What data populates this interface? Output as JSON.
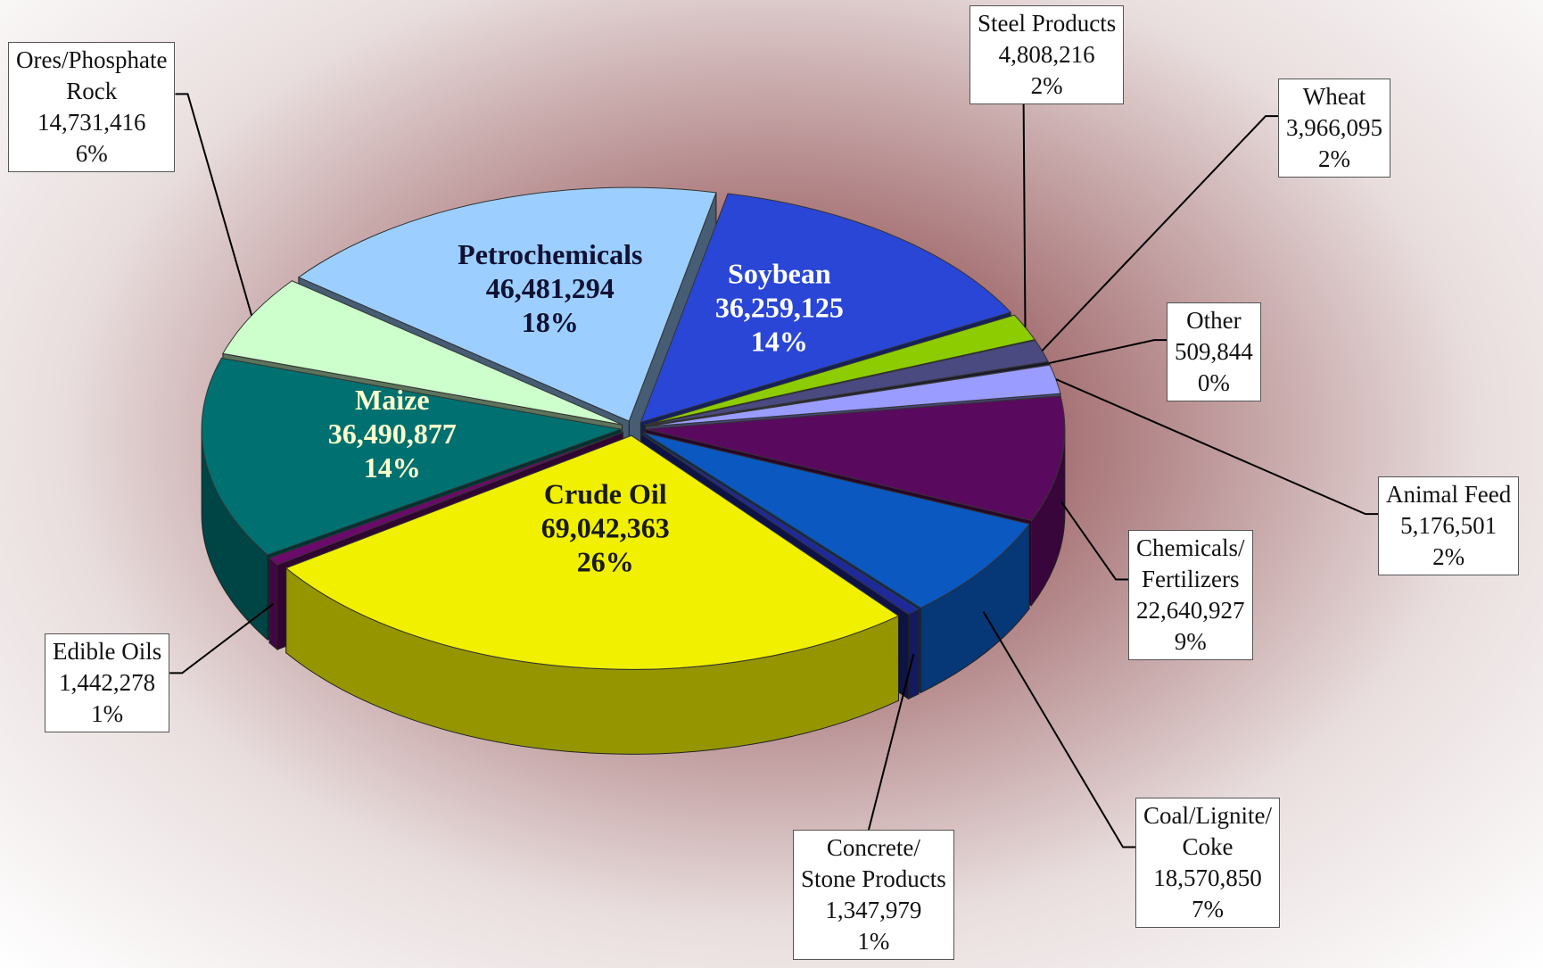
{
  "chart_data": {
    "type": "pie3d",
    "categories": [
      "Soybean",
      "Steel Products",
      "Wheat",
      "Other",
      "Animal Feed",
      "Chemicals/\nFertilizers",
      "Coal/Lignite/\nCoke",
      "Concrete/\nStone Products",
      "Crude Oil",
      "Edible Oils",
      "Maize",
      "Ores/Phosphate\nRock",
      "Petrochemicals"
    ],
    "values": [
      36259125,
      4808216,
      3966095,
      509844,
      5176501,
      22640927,
      18570850,
      1347979,
      69042363,
      1442278,
      36490877,
      14731416,
      46481294
    ],
    "value_labels": [
      "36,259,125",
      "4,808,216",
      "3,966,095",
      "509,844",
      "5,176,501",
      "22,640,927",
      "18,570,850",
      "1,347,979",
      "69,042,363",
      "1,442,278",
      "36,490,877",
      "14,731,416",
      "46,481,294"
    ],
    "percent_labels": [
      "14%",
      "2%",
      "2%",
      "0%",
      "2%",
      "9%",
      "7%",
      "1%",
      "26%",
      "1%",
      "14%",
      "6%",
      "18%"
    ],
    "colors": [
      "#2a46d6",
      "#8ccc00",
      "#4a4a80",
      "#15152a",
      "#9a9cff",
      "#5a0a5e",
      "#0a58c0",
      "#1e2a9a",
      "#f0f000",
      "#6a0a6a",
      "#007070",
      "#ccffcc",
      "#9ccfff"
    ]
  }
}
